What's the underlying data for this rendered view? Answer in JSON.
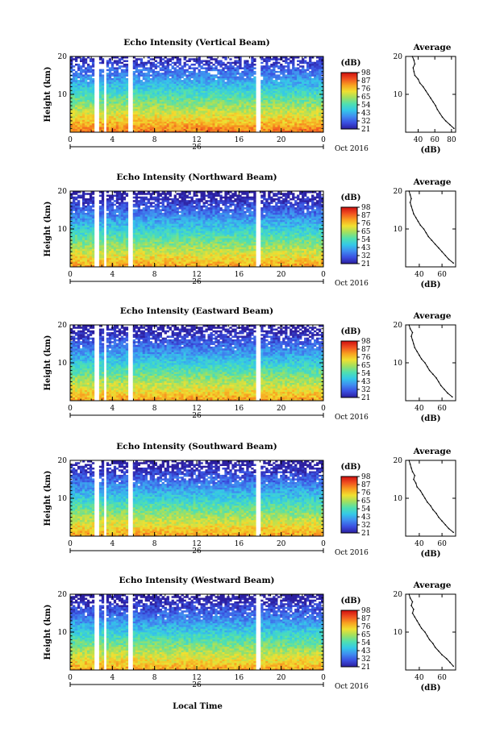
{
  "figure": {
    "xlabel": "Local Time",
    "date_label": "Oct 2016",
    "day_label": "26"
  },
  "colorbar": {
    "unit_label": "(dB)",
    "tick_labels": [
      "98",
      "87",
      "76",
      "65",
      "54",
      "43",
      "32",
      "21"
    ],
    "colors": [
      "#2c1fa0",
      "#3a4fe0",
      "#3f8cf0",
      "#34c8e8",
      "#4fe0b0",
      "#a0e060",
      "#f0e030",
      "#f8a020",
      "#f05020",
      "#d01010"
    ]
  },
  "chart_data": [
    {
      "type": "heatmap",
      "title": "Echo Intensity (Vertical Beam)",
      "ylabel": "Height (km)",
      "xlim": [
        0,
        24
      ],
      "ylim": [
        0,
        20
      ],
      "x_ticks": [
        "0",
        "4",
        "8",
        "12",
        "16",
        "20",
        "0"
      ],
      "y_ticks": [
        "10",
        "20"
      ],
      "data_gaps_hours": [
        [
          2.3,
          2.7
        ],
        [
          3.2,
          3.5
        ],
        [
          5.6,
          5.9
        ],
        [
          17.7,
          18.1
        ]
      ],
      "average_profile": {
        "title": "Average",
        "xlabel": "(dB)",
        "x_ticks": [
          "40",
          "60",
          "80"
        ],
        "xlim": [
          25,
          85
        ],
        "ylim": [
          0,
          20
        ],
        "y_ticks": [
          "10",
          "20"
        ],
        "heights_km": [
          1,
          2,
          3,
          4,
          5,
          6,
          7,
          8,
          9,
          10,
          11,
          12,
          13,
          14,
          15,
          16,
          17,
          18,
          19,
          20
        ],
        "values_db": [
          83,
          78,
          73,
          69,
          66,
          63,
          61,
          58,
          55,
          52,
          49,
          46,
          42,
          40,
          36,
          35,
          34,
          36,
          35,
          33
        ]
      }
    },
    {
      "type": "heatmap",
      "title": "Echo Intensity (Northward Beam)",
      "ylabel": "Height (km)",
      "xlim": [
        0,
        24
      ],
      "ylim": [
        0,
        20
      ],
      "x_ticks": [
        "0",
        "4",
        "8",
        "12",
        "16",
        "20",
        "0"
      ],
      "y_ticks": [
        "10",
        "20"
      ],
      "data_gaps_hours": [
        [
          2.3,
          2.7
        ],
        [
          3.2,
          3.5
        ],
        [
          5.6,
          5.9
        ],
        [
          17.7,
          18.1
        ]
      ],
      "average_profile": {
        "title": "Average",
        "xlabel": "(dB)",
        "x_ticks": [
          "40",
          "60"
        ],
        "xlim": [
          28,
          72
        ],
        "ylim": [
          0,
          20
        ],
        "y_ticks": [
          "10",
          "20"
        ],
        "heights_km": [
          1,
          2,
          3,
          4,
          5,
          6,
          7,
          8,
          9,
          10,
          11,
          12,
          13,
          14,
          15,
          16,
          17,
          18,
          19,
          20
        ],
        "values_db": [
          70,
          66,
          63,
          60,
          57,
          54,
          51,
          48,
          46,
          44,
          41,
          39,
          37,
          35,
          34,
          33,
          32,
          33,
          32,
          31
        ]
      }
    },
    {
      "type": "heatmap",
      "title": "Echo Intensity (Eastward Beam)",
      "ylabel": "Height (km)",
      "xlim": [
        0,
        24
      ],
      "ylim": [
        0,
        20
      ],
      "x_ticks": [
        "0",
        "4",
        "8",
        "12",
        "16",
        "20",
        "0"
      ],
      "y_ticks": [
        "10",
        "20"
      ],
      "data_gaps_hours": [
        [
          2.3,
          2.7
        ],
        [
          3.2,
          3.5
        ],
        [
          5.6,
          5.9
        ],
        [
          17.7,
          18.1
        ]
      ],
      "average_profile": {
        "title": "Average",
        "xlabel": "(dB)",
        "x_ticks": [
          "40",
          "60"
        ],
        "xlim": [
          28,
          72
        ],
        "ylim": [
          0,
          20
        ],
        "y_ticks": [
          "10",
          "20"
        ],
        "heights_km": [
          1,
          2,
          3,
          4,
          5,
          6,
          7,
          8,
          9,
          10,
          11,
          12,
          13,
          14,
          15,
          16,
          17,
          18,
          19,
          20
        ],
        "values_db": [
          69,
          65,
          62,
          59,
          57,
          55,
          52,
          49,
          47,
          45,
          42,
          40,
          38,
          36,
          35,
          34,
          33,
          34,
          32,
          31
        ]
      }
    },
    {
      "type": "heatmap",
      "title": "Echo Intensity (Southward Beam)",
      "ylabel": "Height (km)",
      "xlim": [
        0,
        24
      ],
      "ylim": [
        0,
        20
      ],
      "x_ticks": [
        "0",
        "4",
        "8",
        "12",
        "16",
        "20",
        "0"
      ],
      "y_ticks": [
        "10",
        "20"
      ],
      "data_gaps_hours": [
        [
          2.3,
          2.7
        ],
        [
          3.2,
          3.5
        ],
        [
          5.6,
          5.9
        ],
        [
          17.7,
          18.1
        ]
      ],
      "average_profile": {
        "title": "Average",
        "xlabel": "(dB)",
        "x_ticks": [
          "40",
          "60"
        ],
        "xlim": [
          28,
          72
        ],
        "ylim": [
          0,
          20
        ],
        "y_ticks": [
          "10",
          "20"
        ],
        "heights_km": [
          1,
          2,
          3,
          4,
          5,
          6,
          7,
          8,
          9,
          10,
          11,
          12,
          13,
          14,
          15,
          16,
          17,
          18,
          19,
          20
        ],
        "values_db": [
          70,
          66,
          63,
          60,
          57,
          55,
          52,
          50,
          47,
          45,
          43,
          41,
          38,
          37,
          35,
          36,
          34,
          33,
          32,
          31
        ]
      }
    },
    {
      "type": "heatmap",
      "title": "Echo Intensity (Westward Beam)",
      "ylabel": "Height (km)",
      "xlim": [
        0,
        24
      ],
      "ylim": [
        0,
        20
      ],
      "x_ticks": [
        "0",
        "4",
        "8",
        "12",
        "16",
        "20",
        "0"
      ],
      "y_ticks": [
        "10",
        "20"
      ],
      "data_gaps_hours": [
        [
          2.3,
          2.7
        ],
        [
          3.2,
          3.5
        ],
        [
          5.6,
          5.9
        ],
        [
          17.7,
          18.1
        ]
      ],
      "average_profile": {
        "title": "Average",
        "xlabel": "(dB)",
        "x_ticks": [
          "40",
          "60"
        ],
        "xlim": [
          28,
          72
        ],
        "ylim": [
          0,
          20
        ],
        "y_ticks": [
          "10",
          "20"
        ],
        "heights_km": [
          1,
          2,
          3,
          4,
          5,
          6,
          7,
          8,
          9,
          10,
          11,
          12,
          13,
          14,
          15,
          16,
          17,
          18,
          19,
          20
        ],
        "values_db": [
          70,
          67,
          64,
          60,
          57,
          54,
          52,
          49,
          47,
          45,
          42,
          40,
          38,
          36,
          34,
          35,
          33,
          34,
          32,
          31
        ]
      }
    }
  ]
}
